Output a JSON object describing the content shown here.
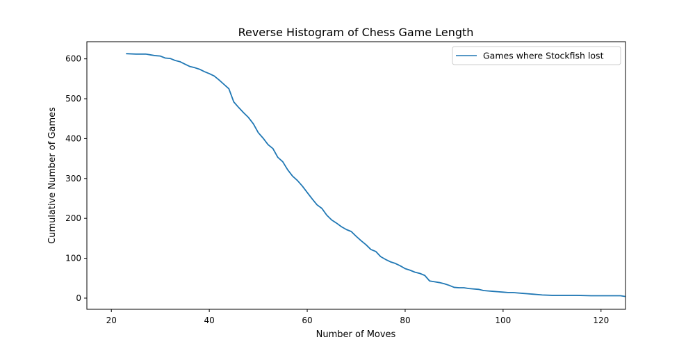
{
  "chart_data": {
    "type": "line",
    "title": "Reverse Histogram of Chess Game Length",
    "xlabel": "Number of Moves",
    "ylabel": "Cumulative Number of Games",
    "xlim": [
      15,
      125
    ],
    "ylim": [
      -28,
      643
    ],
    "xticks": [
      20,
      40,
      60,
      80,
      100,
      120
    ],
    "yticks": [
      0,
      100,
      200,
      300,
      400,
      500,
      600
    ],
    "grid": false,
    "legend_position": "top-right",
    "series": [
      {
        "name": "Games where Stockfish lost",
        "color": "#1f77b4",
        "x": [
          23,
          25,
          27,
          28,
          29,
          30,
          31,
          32,
          33,
          34,
          35,
          36,
          37,
          38,
          39,
          40,
          41,
          42,
          43,
          44,
          45,
          46,
          47,
          48,
          49,
          50,
          51,
          52,
          53,
          54,
          55,
          56,
          57,
          58,
          59,
          60,
          61,
          62,
          63,
          64,
          65,
          66,
          67,
          68,
          69,
          70,
          71,
          72,
          73,
          74,
          75,
          76,
          77,
          78,
          79,
          80,
          81,
          82,
          83,
          84,
          85,
          86,
          87,
          88,
          89,
          90,
          91,
          92,
          93,
          94,
          95,
          96,
          97,
          98,
          99,
          100,
          101,
          102,
          103,
          104,
          105,
          106,
          107,
          108,
          110,
          112,
          115,
          118,
          120,
          122,
          124,
          125
        ],
        "values": [
          613,
          612,
          612,
          610,
          608,
          607,
          602,
          601,
          596,
          593,
          587,
          581,
          578,
          574,
          568,
          563,
          557,
          547,
          536,
          525,
          492,
          478,
          465,
          453,
          437,
          415,
          401,
          385,
          375,
          353,
          342,
          322,
          306,
          295,
          281,
          265,
          249,
          234,
          225,
          208,
          196,
          188,
          179,
          172,
          167,
          155,
          144,
          134,
          122,
          117,
          104,
          97,
          91,
          87,
          81,
          74,
          70,
          65,
          62,
          57,
          43,
          41,
          39,
          36,
          32,
          27,
          26,
          26,
          24,
          23,
          22,
          19,
          18,
          17,
          16,
          15,
          14,
          14,
          13,
          12,
          11,
          10,
          9,
          8,
          7,
          7,
          7,
          6,
          6,
          6,
          6,
          4
        ]
      }
    ]
  }
}
